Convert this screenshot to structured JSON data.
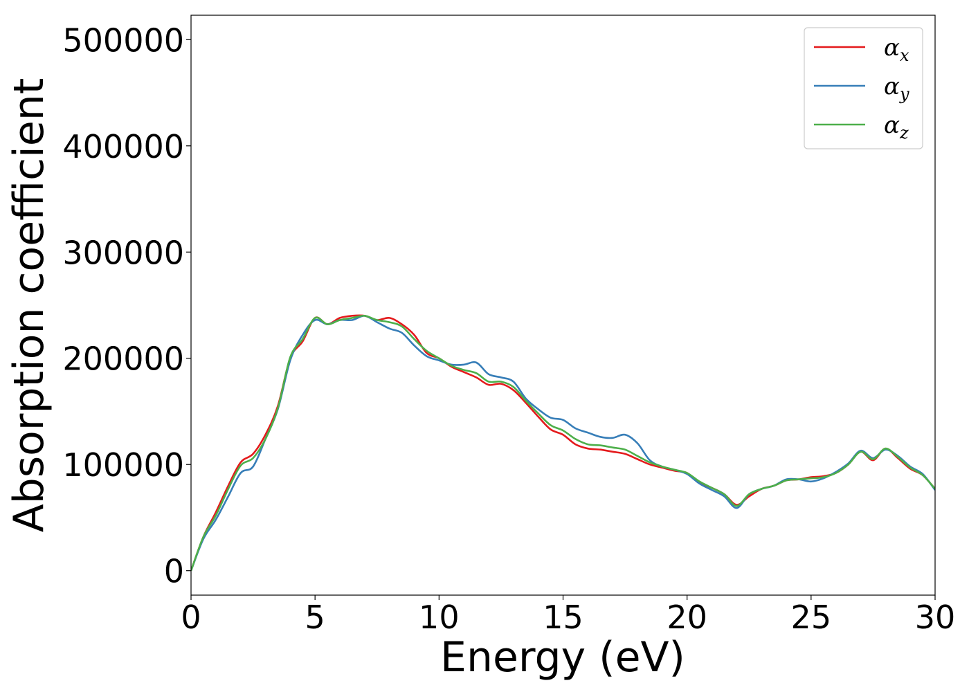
{
  "chart_data": {
    "type": "line",
    "xlabel": "Energy (eV)",
    "ylabel": "Absorption coefficient",
    "xlim": [
      0,
      30
    ],
    "ylim": [
      -23000,
      523000
    ],
    "xticks": [
      0,
      5,
      10,
      15,
      20,
      25,
      30
    ],
    "yticks": [
      0,
      100000,
      200000,
      300000,
      400000,
      500000
    ],
    "grid": false,
    "legend_position": "top-right",
    "x": [
      0,
      0.5,
      1,
      1.5,
      2,
      2.5,
      3,
      3.5,
      4,
      4.5,
      5,
      5.5,
      6,
      6.5,
      7,
      7.5,
      8,
      8.5,
      9,
      9.5,
      10,
      10.5,
      11,
      11.5,
      12,
      12.5,
      13,
      13.5,
      14,
      14.5,
      15,
      15.5,
      16,
      16.5,
      17,
      17.5,
      18,
      18.5,
      19,
      19.5,
      20,
      20.5,
      21,
      21.5,
      22,
      22.5,
      23,
      23.5,
      24,
      24.5,
      25,
      25.5,
      26,
      26.5,
      27,
      27.5,
      28,
      28.5,
      29,
      29.5,
      30
    ],
    "series": [
      {
        "name": "α",
        "subscript": "x",
        "color": "#e41a1c",
        "values": [
          0,
          32000,
          55000,
          80000,
          102000,
          110000,
          128000,
          155000,
          200000,
          216000,
          238000,
          232000,
          238000,
          240000,
          240000,
          236000,
          238000,
          232000,
          222000,
          205000,
          200000,
          192000,
          187000,
          182000,
          175000,
          176000,
          170000,
          158000,
          145000,
          133000,
          128000,
          119000,
          115000,
          114000,
          112000,
          110000,
          105000,
          100000,
          97000,
          94000,
          92000,
          83000,
          78000,
          72000,
          62000,
          70000,
          77000,
          80000,
          85000,
          86000,
          88000,
          89000,
          92000,
          100000,
          112000,
          104000,
          115000,
          106000,
          96000,
          90000,
          77000
        ]
      },
      {
        "name": "α",
        "subscript": "y",
        "color": "#377eb8",
        "values": [
          0,
          30000,
          48000,
          70000,
          92000,
          98000,
          124000,
          152000,
          198000,
          222000,
          236000,
          232000,
          236000,
          236000,
          240000,
          234000,
          228000,
          224000,
          212000,
          202000,
          198000,
          194000,
          194000,
          196000,
          185000,
          182000,
          178000,
          162000,
          152000,
          144000,
          142000,
          134000,
          130000,
          126000,
          125000,
          128000,
          120000,
          104000,
          98000,
          95000,
          91000,
          82000,
          76000,
          70000,
          59000,
          72000,
          77000,
          80000,
          86000,
          86000,
          84000,
          87000,
          93000,
          101000,
          113000,
          106000,
          114000,
          108000,
          98000,
          91000,
          76000
        ]
      },
      {
        "name": "α",
        "subscript": "z",
        "color": "#4daf4a",
        "values": [
          0,
          32000,
          52000,
          77000,
          99000,
          106000,
          124000,
          153000,
          201000,
          218000,
          238000,
          232000,
          236000,
          238000,
          240000,
          236000,
          234000,
          230000,
          218000,
          207000,
          200000,
          193000,
          189000,
          186000,
          178000,
          178000,
          173000,
          160000,
          148000,
          137000,
          132000,
          124000,
          119000,
          118000,
          116000,
          114000,
          108000,
          102000,
          98000,
          95000,
          92000,
          84000,
          78000,
          72000,
          61000,
          72000,
          77000,
          80000,
          85000,
          86000,
          87000,
          88000,
          92000,
          100000,
          112000,
          105000,
          115000,
          107000,
          97000,
          90000,
          77000
        ]
      }
    ]
  }
}
